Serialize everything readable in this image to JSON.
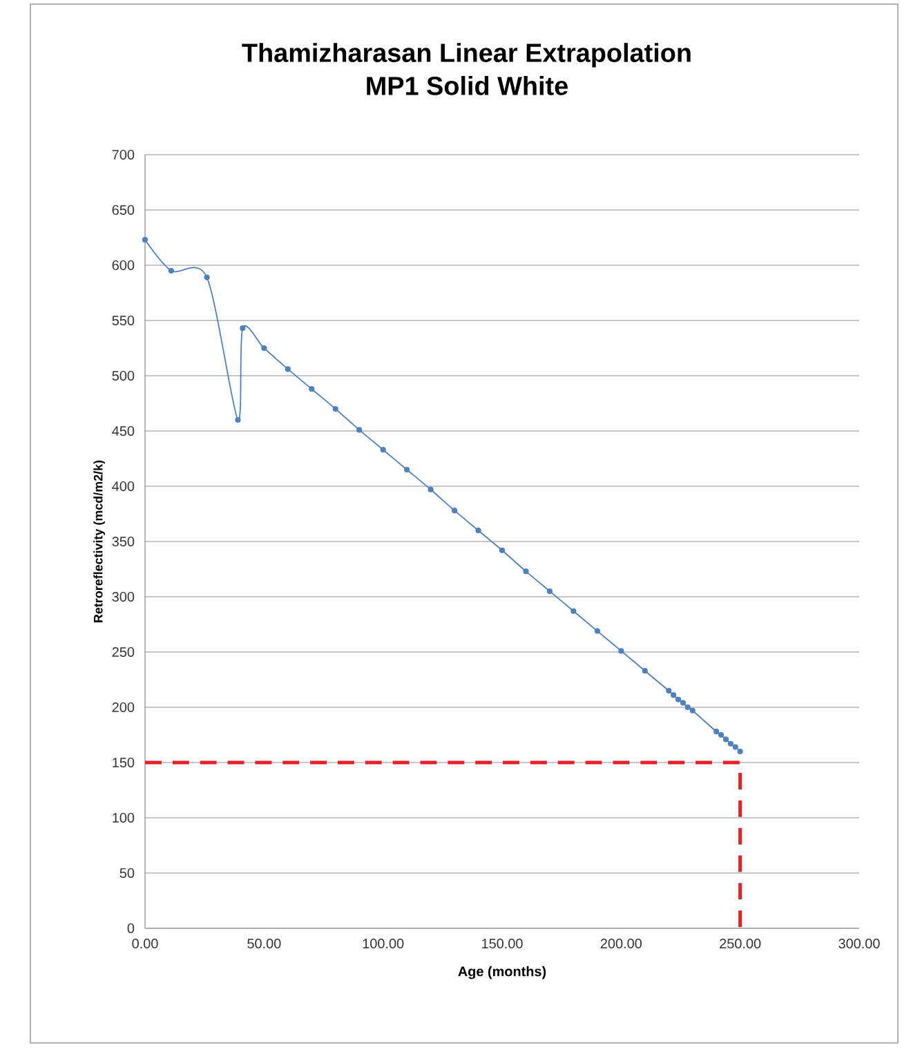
{
  "chart_data": {
    "type": "line",
    "title": "Thamizharasan Linear Extrapolation\nMP1 Solid White",
    "xlabel": "Age (months)",
    "ylabel": "Retroreflectivity (mcd/m2/k)",
    "xlim": [
      0,
      300
    ],
    "ylim": [
      0,
      700
    ],
    "xticks": [
      {
        "value": 0,
        "label": "0.00"
      },
      {
        "value": 50,
        "label": "50.00"
      },
      {
        "value": 100,
        "label": "100.00"
      },
      {
        "value": 150,
        "label": "150.00"
      },
      {
        "value": 200,
        "label": "200.00"
      },
      {
        "value": 250,
        "label": "250.00"
      },
      {
        "value": 300,
        "label": "300.00"
      }
    ],
    "yticks": [
      0,
      50,
      100,
      150,
      200,
      250,
      300,
      350,
      400,
      450,
      500,
      550,
      600,
      650,
      700
    ],
    "grid": "y",
    "series": [
      {
        "color": "#4f81bd",
        "marker": "circle",
        "line_style": "solid",
        "x": [
          0,
          11,
          26,
          39,
          41,
          50,
          60,
          70,
          80,
          90,
          100,
          110,
          120,
          130,
          140,
          150,
          160,
          170,
          180,
          190,
          200,
          210,
          220,
          222,
          224,
          226,
          228,
          230,
          240,
          242,
          244,
          246,
          248,
          250
        ],
        "values": [
          623,
          595,
          589,
          460,
          543,
          525,
          506,
          488,
          470,
          451,
          433,
          415,
          397,
          378,
          360,
          342,
          323,
          305,
          287,
          269,
          251,
          233,
          215,
          211,
          207,
          204,
          200,
          197,
          178,
          175,
          171,
          167,
          164,
          160
        ]
      },
      {
        "color": "#e8202a",
        "marker": "none",
        "line_style": "dashed",
        "x": [
          0,
          250,
          250
        ],
        "values": [
          150,
          150,
          0
        ]
      }
    ]
  }
}
